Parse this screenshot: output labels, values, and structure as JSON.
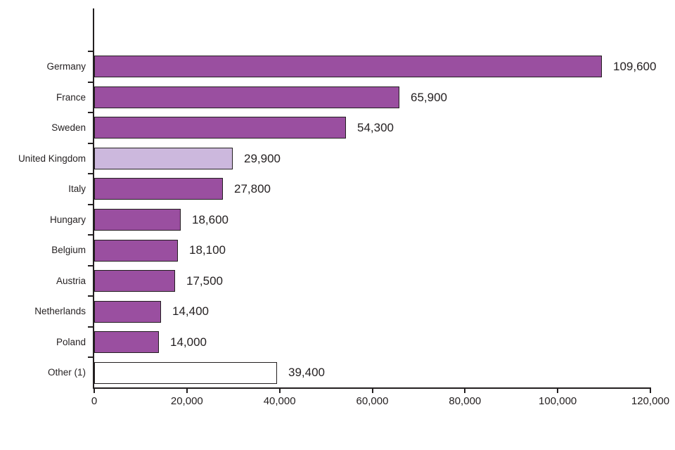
{
  "chart_data": {
    "type": "bar",
    "orientation": "horizontal",
    "title": "",
    "xlabel": "",
    "ylabel": "",
    "grid": false,
    "legend": false,
    "categories": [
      "Germany",
      "France",
      "Sweden",
      "United Kingdom",
      "Italy",
      "Hungary",
      "Belgium",
      "Austria",
      "Netherlands",
      "Poland",
      "Other (1)"
    ],
    "values": [
      109600,
      65900,
      54300,
      29900,
      27800,
      18600,
      18100,
      17500,
      14400,
      14000,
      39400
    ],
    "value_labels": [
      "109,600",
      "65,900",
      "54,300",
      "29,900",
      "27,800",
      "18,600",
      "18,100",
      "17,500",
      "14,400",
      "14,000",
      "39,400"
    ],
    "bar_colors": [
      "#9a4fa0",
      "#9a4fa0",
      "#9a4fa0",
      "#ccb8dd",
      "#9a4fa0",
      "#9a4fa0",
      "#9a4fa0",
      "#9a4fa0",
      "#9a4fa0",
      "#9a4fa0",
      "#ffffff"
    ],
    "x_axis": {
      "min": 0,
      "max": 120000,
      "tick_step": 20000,
      "tick_labels": [
        "0",
        "20,000",
        "40,000",
        "60,000",
        "80,000",
        "100,000",
        "120,000"
      ]
    },
    "colors": {
      "default_bar": "#9a4fa0",
      "highlight_bar": "#ccb8dd",
      "other_bar": "#ffffff",
      "bar_border": "#231f20",
      "axis": "#231f20",
      "text": "#231f20"
    }
  }
}
